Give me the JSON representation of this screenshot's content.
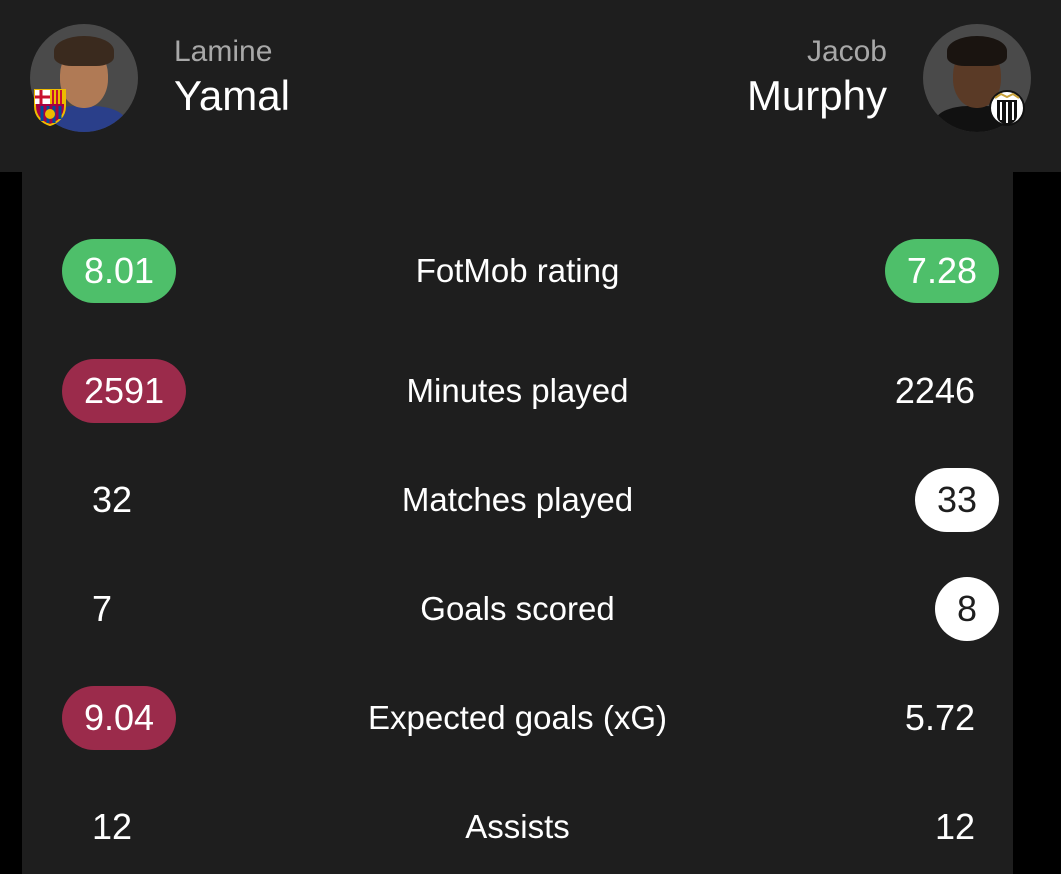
{
  "players": {
    "left": {
      "first": "Lamine",
      "last": "Yamal",
      "avatar_icon": "player-photo-yamal",
      "club_icon": "barcelona-crest-icon"
    },
    "right": {
      "first": "Jacob",
      "last": "Murphy",
      "avatar_icon": "player-photo-murphy",
      "club_icon": "newcastle-crest-icon"
    }
  },
  "colors": {
    "background": "#1e1e1e",
    "green_pill": "#4ebf6a",
    "red_pill": "#9b2b4b",
    "white_pill": "#ffffff"
  },
  "stats": [
    {
      "label": "FotMob rating",
      "left": "8.01",
      "right": "7.28",
      "left_style": "green",
      "right_style": "green"
    },
    {
      "label": "Minutes played",
      "left": "2591",
      "right": "2246",
      "left_style": "red",
      "right_style": "plain"
    },
    {
      "label": "Matches played",
      "left": "32",
      "right": "33",
      "left_style": "plain",
      "right_style": "white"
    },
    {
      "label": "Goals scored",
      "left": "7",
      "right": "8",
      "left_style": "plain",
      "right_style": "white"
    },
    {
      "label": "Expected goals (xG)",
      "left": "9.04",
      "right": "5.72",
      "left_style": "red",
      "right_style": "plain"
    },
    {
      "label": "Assists",
      "left": "12",
      "right": "12",
      "left_style": "plain",
      "right_style": "plain"
    }
  ]
}
